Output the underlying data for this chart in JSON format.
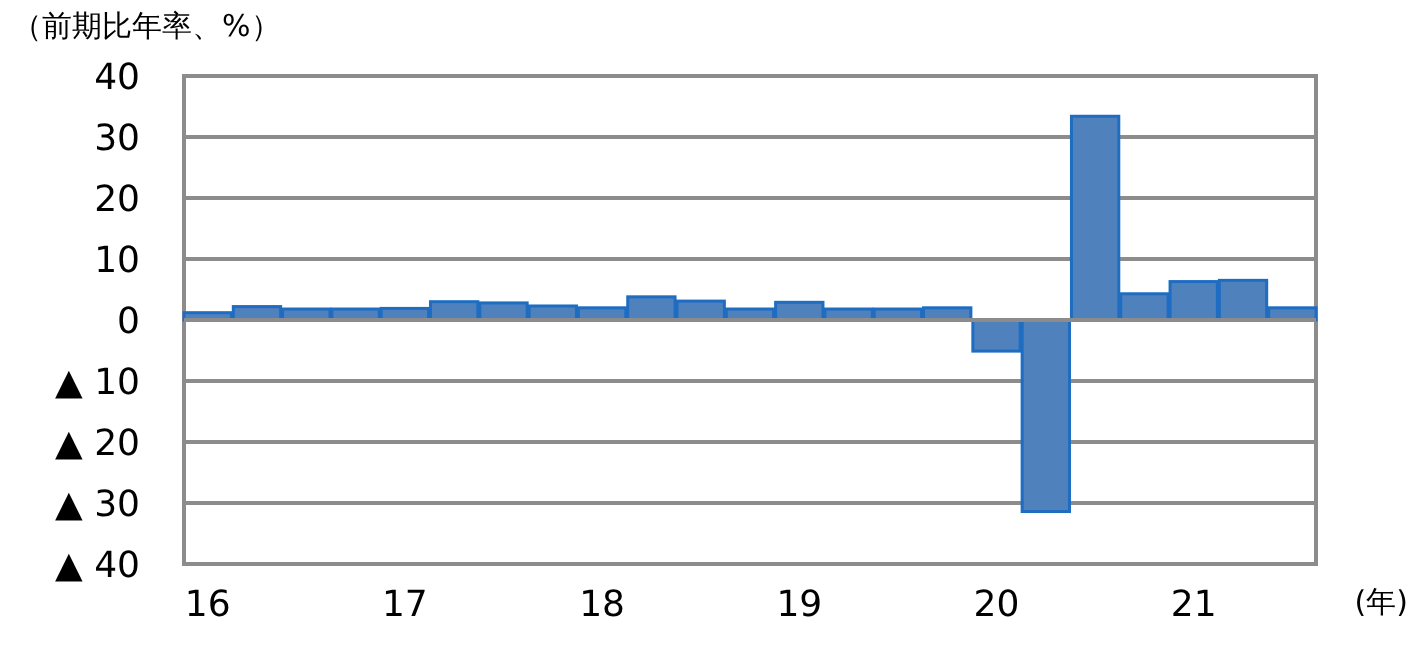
{
  "chart_data": {
    "type": "bar",
    "ylabel": "（前期比年率、%）",
    "xlabel": "(年)",
    "categories": [
      "16",
      null,
      null,
      null,
      "17",
      null,
      null,
      null,
      "18",
      null,
      null,
      null,
      "19",
      null,
      null,
      null,
      "20",
      null,
      null,
      null,
      "21",
      null,
      null
    ],
    "values": [
      1.2,
      2.2,
      1.8,
      1.8,
      1.9,
      3.0,
      2.8,
      2.3,
      2.0,
      3.8,
      3.1,
      1.8,
      2.9,
      1.8,
      1.8,
      2.0,
      -5.1,
      -31.4,
      33.4,
      4.3,
      6.3,
      6.5,
      2.0
    ],
    "color": "#4f81bd",
    "ylim": [
      -40,
      40
    ],
    "yticks": [
      {
        "value": -40,
        "label": "▲ 40"
      },
      {
        "value": -30,
        "label": "▲ 30"
      },
      {
        "value": -20,
        "label": "▲ 20"
      },
      {
        "value": -10,
        "label": "▲ 10"
      },
      0,
      10,
      20,
      30,
      40
    ],
    "grid": "y"
  }
}
